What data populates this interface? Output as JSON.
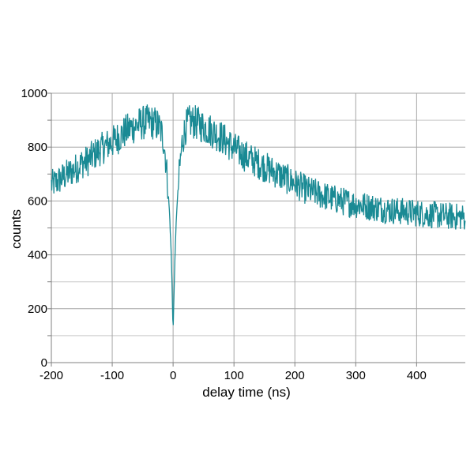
{
  "chart_data": {
    "type": "line",
    "title": "",
    "xlabel": "delay time (ns)",
    "ylabel": "counts",
    "xlim": [
      -200,
      480
    ],
    "ylim": [
      0,
      1000
    ],
    "x_ticks": [
      -200,
      -100,
      0,
      100,
      200,
      300,
      400
    ],
    "y_ticks": [
      0,
      200,
      400,
      600,
      800,
      1000
    ],
    "grid": true,
    "minor_grid": true,
    "legend": "none",
    "line_color": "#1a8a94",
    "x_ticks_text": [
      "-200",
      "-100",
      "0",
      "100",
      "200",
      "300",
      "400"
    ],
    "y_ticks_text": [
      "0",
      "200",
      "400",
      "600",
      "800",
      "1000"
    ],
    "series": [
      {
        "x": [
          -200,
          -190,
          -180,
          -170,
          -160,
          -150,
          -140,
          -130,
          -120,
          -110,
          -100,
          -90,
          -80,
          -70,
          -60,
          -50,
          -45,
          -40,
          -35,
          -30,
          -25,
          -20,
          -15,
          -10,
          -6,
          -3,
          0,
          3,
          6,
          10,
          15,
          20,
          25,
          30,
          35,
          40,
          50,
          60,
          70,
          80,
          90,
          100,
          120,
          140,
          160,
          180,
          200,
          220,
          240,
          260,
          280,
          300,
          320,
          340,
          360,
          380,
          400,
          420,
          440,
          460,
          480
        ],
        "y": [
          660,
          672,
          690,
          705,
          720,
          740,
          750,
          772,
          790,
          805,
          818,
          836,
          855,
          870,
          880,
          890,
          892,
          895,
          892,
          888,
          880,
          860,
          820,
          700,
          560,
          400,
          120,
          390,
          570,
          700,
          820,
          870,
          890,
          895,
          892,
          888,
          876,
          865,
          850,
          835,
          815,
          795,
          765,
          740,
          715,
          690,
          665,
          640,
          625,
          610,
          598,
          588,
          580,
          572,
          565,
          560,
          555,
          550,
          546,
          542,
          540
        ]
      }
    ]
  }
}
